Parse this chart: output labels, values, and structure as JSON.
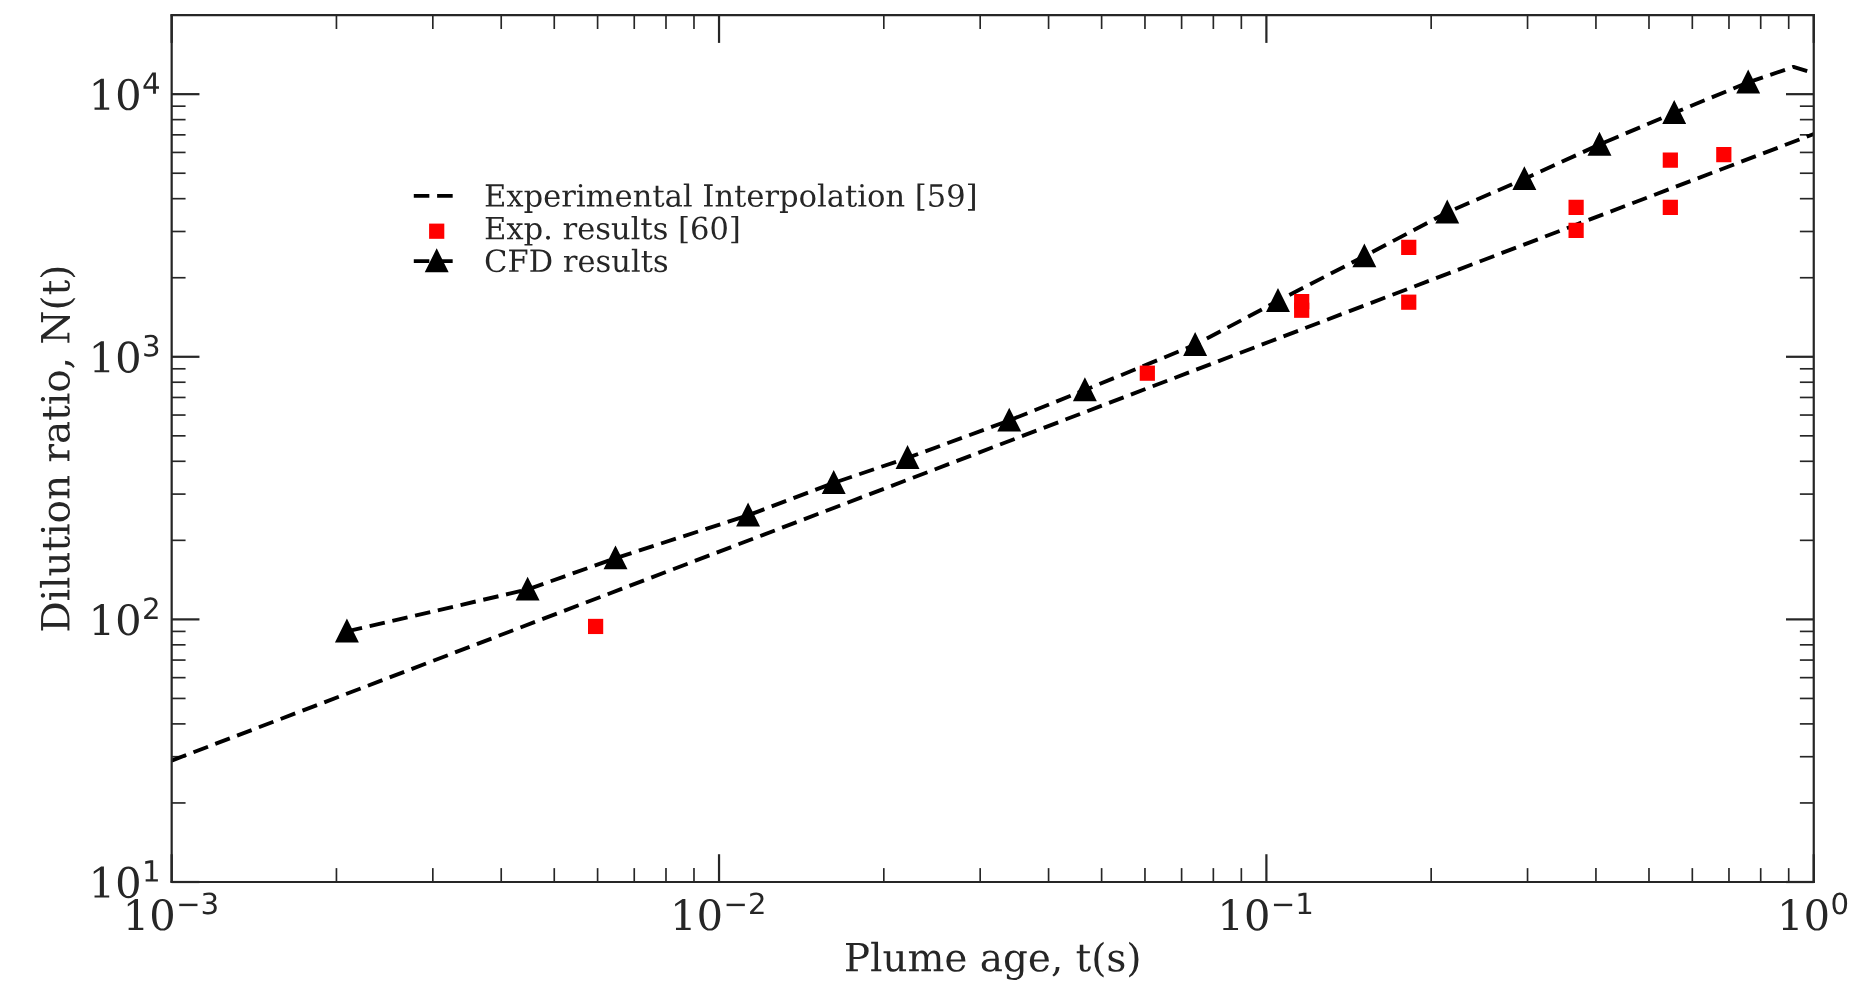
{
  "chart_data": {
    "type": "line",
    "xlabel": "Plume age, t(s)",
    "ylabel": "Dilution ratio, N(t)",
    "log": "xy",
    "xlim": [
      0.001,
      1
    ],
    "ylim": [
      10,
      20000
    ],
    "xticks": [
      {
        "value": 0.001,
        "label": "10$^{−3}$"
      },
      {
        "value": 0.01,
        "label": "10$^{−2}$"
      },
      {
        "value": 0.1,
        "label": "10$^{−1}$"
      },
      {
        "value": 1,
        "label": "10$^{0}$"
      }
    ],
    "yticks": [
      {
        "value": 10,
        "label": "10$^{1}$"
      },
      {
        "value": 100,
        "label": "10$^{2}$"
      },
      {
        "value": 1000,
        "label": "10$^{3}$"
      },
      {
        "value": 10000,
        "label": "10$^{4}$"
      }
    ],
    "grid": false,
    "legend": "top left",
    "series": [
      {
        "name": "Experimental Interpolation [59]",
        "color": "#000000",
        "line_style": "dashed",
        "marker": "none",
        "x": [
          0.001,
          1
        ],
        "values": [
          29,
          7050
        ]
      },
      {
        "name": "Exp. results [60]",
        "type": "scatter",
        "color": "#ff0000",
        "marker": "square",
        "x": [
          0.00595,
          0.0606,
          0.116,
          0.116,
          0.182,
          0.182,
          0.368,
          0.368,
          0.547,
          0.547,
          0.685
        ],
        "values": [
          94,
          866,
          1622,
          1504,
          2610,
          1614,
          3707,
          3027,
          5610,
          3707,
          5890
        ]
      },
      {
        "name": "CFD results",
        "color": "#000000",
        "line_style": "dashed",
        "marker": "triangle",
        "x": [
          0.00209,
          0.00447,
          0.00647,
          0.0113,
          0.0162,
          0.0221,
          0.0339,
          0.0466,
          0.0741,
          0.105,
          0.151,
          0.214,
          0.296,
          0.406,
          0.556,
          0.759
        ],
        "values": [
          90,
          130,
          171,
          249,
          331,
          412,
          572,
          747,
          1111,
          1633,
          2415,
          3548,
          4753,
          6430,
          8490,
          11090
        ]
      },
      {
        "color": "#000000",
        "line_style": "dashed",
        "marker": "none",
        "x": [
          0.759,
          0.918,
          0.99
        ],
        "values": [
          11090,
          12700,
          12100
        ]
      }
    ]
  }
}
